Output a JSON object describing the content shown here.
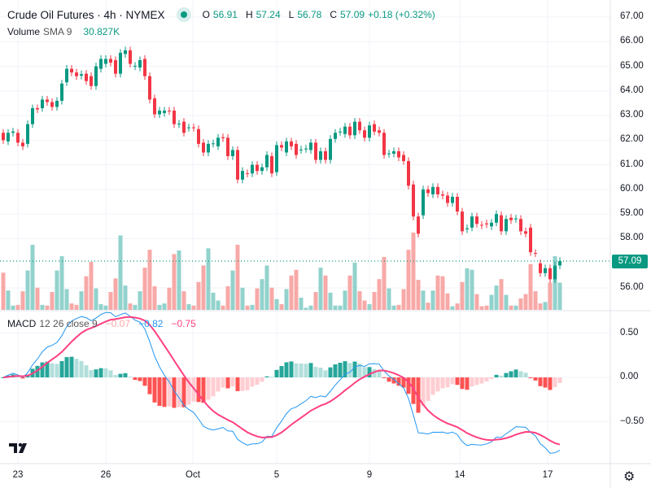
{
  "header": {
    "symbol_title": "Crude Oil Futures · 4h · NYMEX",
    "open_label": "O",
    "open": "56.91",
    "high_label": "H",
    "high": "57.24",
    "low_label": "L",
    "low": "56.78",
    "close_label": "C",
    "close": "57.09",
    "change": "+0.18 (+0.32%)"
  },
  "volume_legend": {
    "name": "Volume",
    "params": "SMA 9",
    "value": "30.827K"
  },
  "macd_legend": {
    "name": "MACD",
    "params": "12 26 close 9",
    "histogram": "−0.07",
    "macd": "−0.82",
    "signal": "−0.75"
  },
  "last_price": "57.09",
  "price_axis": [
    "67.00",
    "66.00",
    "65.00",
    "64.00",
    "63.00",
    "62.00",
    "61.00",
    "60.00",
    "59.00",
    "58.00",
    "56.00"
  ],
  "macd_axis": [
    "0.50",
    "0.00",
    "−0.50"
  ],
  "time_axis": [
    "23",
    "26",
    "Oct",
    "5",
    "9",
    "14",
    "17"
  ],
  "colors": {
    "up": "#089981",
    "down": "#f23645",
    "vol_up": "#92d2cc",
    "vol_down": "#f7a9a7",
    "macd": "#2196f3",
    "signal": "#ff4081",
    "hist_up_strong": "#26a69a",
    "hist_up_weak": "#b2dfdb",
    "hist_down_strong": "#ff5252",
    "hist_down_weak": "#ffcdd2"
  },
  "logo": "TV",
  "chart_data": {
    "type": "candlestick",
    "title": "Crude Oil Futures · 4h · NYMEX",
    "ylim": [
      55.5,
      67.2
    ],
    "candles_open_close": [
      [
        62.3,
        62.0
      ],
      [
        61.95,
        62.3
      ],
      [
        62.3,
        62.35
      ],
      [
        62.3,
        61.9
      ],
      [
        61.9,
        61.75
      ],
      [
        61.85,
        62.65
      ],
      [
        62.65,
        63.3
      ],
      [
        63.3,
        63.25
      ],
      [
        63.3,
        63.65
      ],
      [
        63.65,
        63.55
      ],
      [
        63.55,
        63.35
      ],
      [
        63.35,
        63.6
      ],
      [
        63.6,
        64.3
      ],
      [
        64.35,
        64.9
      ],
      [
        64.9,
        64.75
      ],
      [
        64.75,
        64.6
      ],
      [
        64.62,
        64.68
      ],
      [
        64.7,
        64.4
      ],
      [
        64.6,
        64.2
      ],
      [
        64.2,
        65.0
      ],
      [
        64.9,
        65.3
      ],
      [
        65.1,
        65.3
      ],
      [
        65.3,
        65.15
      ],
      [
        65.25,
        64.7
      ],
      [
        64.7,
        65.55
      ],
      [
        65.5,
        65.65
      ],
      [
        65.65,
        65.1
      ],
      [
        65.0,
        65.02
      ],
      [
        64.95,
        65.25
      ],
      [
        65.3,
        64.6
      ],
      [
        64.6,
        63.65
      ],
      [
        63.7,
        63.05
      ],
      [
        63.05,
        63.2
      ],
      [
        63.1,
        63.2
      ],
      [
        63.2,
        63.18
      ],
      [
        63.2,
        62.65
      ],
      [
        62.65,
        62.67
      ],
      [
        62.75,
        62.3
      ],
      [
        62.5,
        62.52
      ],
      [
        62.52,
        62.5
      ],
      [
        62.45,
        61.85
      ],
      [
        61.9,
        61.5
      ],
      [
        61.5,
        61.85
      ],
      [
        61.85,
        61.87
      ],
      [
        61.75,
        62.1
      ],
      [
        62.12,
        62.08
      ],
      [
        62.1,
        61.35
      ],
      [
        61.35,
        61.6
      ],
      [
        61.6,
        60.4
      ],
      [
        60.4,
        60.75
      ],
      [
        60.66,
        60.64
      ],
      [
        60.65,
        61.0
      ],
      [
        61.0,
        60.75
      ],
      [
        60.75,
        60.9
      ],
      [
        60.9,
        61.4
      ],
      [
        61.35,
        60.65
      ],
      [
        60.7,
        61.8
      ],
      [
        61.8,
        61.7
      ],
      [
        61.5,
        61.95
      ],
      [
        61.95,
        61.75
      ],
      [
        61.85,
        61.4
      ],
      [
        61.6,
        61.62
      ],
      [
        61.64,
        61.66
      ],
      [
        61.6,
        61.9
      ],
      [
        61.9,
        61.2
      ],
      [
        61.2,
        61.55
      ],
      [
        61.55,
        61.2
      ],
      [
        61.2,
        62.05
      ],
      [
        62.05,
        62.3
      ],
      [
        62.33,
        62.35
      ],
      [
        62.25,
        62.55
      ],
      [
        62.55,
        62.2
      ],
      [
        62.2,
        62.75
      ],
      [
        62.75,
        62.4
      ],
      [
        62.4,
        62.1
      ],
      [
        62.1,
        62.6
      ],
      [
        62.65,
        62.35
      ],
      [
        62.4,
        62.3
      ],
      [
        62.3,
        61.4
      ],
      [
        61.44,
        61.46
      ],
      [
        61.45,
        61.55
      ],
      [
        61.55,
        61.3
      ],
      [
        61.4,
        61.15
      ],
      [
        61.15,
        60.15
      ],
      [
        60.2,
        58.9
      ],
      [
        58.9,
        58.2
      ],
      [
        58.95,
        60.0
      ],
      [
        60.0,
        59.85
      ],
      [
        59.8,
        60.1
      ],
      [
        60.1,
        59.8
      ],
      [
        59.8,
        59.75
      ],
      [
        59.75,
        59.45
      ],
      [
        59.45,
        59.7
      ],
      [
        59.7,
        59.1
      ],
      [
        59.1,
        58.3
      ],
      [
        58.38,
        58.42
      ],
      [
        58.45,
        58.9
      ],
      [
        58.9,
        58.6
      ],
      [
        58.56,
        58.54
      ],
      [
        58.62,
        58.58
      ],
      [
        58.5,
        58.65
      ],
      [
        58.65,
        59.0
      ],
      [
        58.95,
        58.3
      ],
      [
        58.3,
        58.8
      ],
      [
        58.85,
        58.75
      ],
      [
        58.8,
        58.82
      ],
      [
        58.8,
        58.3
      ],
      [
        58.3,
        58.2
      ],
      [
        58.45,
        57.45
      ],
      [
        57.42,
        57.4
      ],
      [
        57.0,
        56.6
      ],
      [
        56.6,
        56.8
      ],
      [
        56.8,
        56.35
      ],
      [
        56.35,
        56.9
      ],
      [
        56.91,
        57.09
      ]
    ],
    "volume_k": [
      52,
      27,
      6,
      7,
      26,
      55,
      91,
      31,
      7,
      6,
      25,
      55,
      75,
      29,
      9,
      7,
      26,
      47,
      67,
      30,
      8,
      6,
      25,
      44,
      104,
      34,
      9,
      7,
      26,
      59,
      84,
      33,
      7,
      9,
      31,
      78,
      83,
      26,
      8,
      6,
      39,
      62,
      86,
      24,
      13,
      6,
      33,
      55,
      91,
      31,
      6,
      7,
      30,
      43,
      62,
      31,
      15,
      8,
      29,
      48,
      56,
      17,
      3,
      6,
      25,
      59,
      48,
      24,
      6,
      6,
      27,
      48,
      66,
      26,
      13,
      8,
      25,
      43,
      74,
      30,
      6,
      7,
      29,
      84,
      108,
      42,
      27,
      10,
      27,
      48,
      47,
      23,
      5,
      9,
      39,
      58,
      56,
      22,
      5,
      6,
      21,
      34,
      43,
      21,
      6,
      6,
      16,
      22,
      64,
      26,
      9,
      11,
      38,
      75,
      38
    ],
    "macd_params": {
      "fast": 12,
      "slow": 26,
      "signal": 9
    },
    "macd_ylim": [
      -0.85,
      0.6
    ]
  }
}
